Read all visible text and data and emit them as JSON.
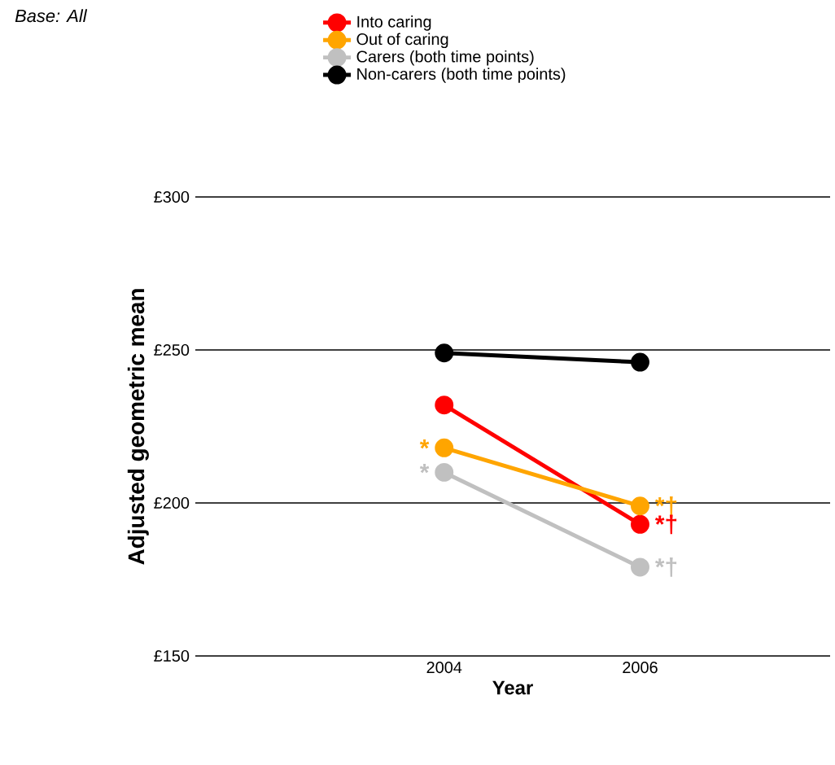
{
  "chart_data": {
    "type": "line",
    "xlabel": "Year",
    "ylabel": "Adjusted geometric mean",
    "categories": [
      "2004",
      "2006"
    ],
    "series": [
      {
        "name": "Into caring",
        "color": "#ff0000",
        "values": [
          232,
          193
        ]
      },
      {
        "name": "Out of caring",
        "color": "#ffa500",
        "values": [
          218,
          199
        ]
      },
      {
        "name": "Carers (both time points)",
        "color": "#c0c0c0",
        "values": [
          210,
          179
        ]
      },
      {
        "name": "Non-carers (both time points)",
        "color": "#000000",
        "values": [
          249,
          246
        ]
      }
    ],
    "ylim": [
      150,
      300
    ],
    "yticks": [
      {
        "value": 150,
        "label": "£150"
      },
      {
        "value": 200,
        "label": "£200"
      },
      {
        "value": 250,
        "label": "£250"
      },
      {
        "value": 300,
        "label": "£300"
      }
    ],
    "grid": "y",
    "legend": "top",
    "marker": "circle",
    "line_style": "solid",
    "annotations": [
      "*Base: All*",
      {
        "text": "*",
        "x": "2004",
        "y": 218
      },
      {
        "text": "*",
        "x": "2004",
        "y": 210
      },
      {
        "text": "*†",
        "x": "2006",
        "y": 199
      },
      {
        "text": "*†",
        "x": "2006",
        "y": 193
      },
      {
        "text": "*†",
        "x": "2006",
        "y": 179
      }
    ]
  }
}
